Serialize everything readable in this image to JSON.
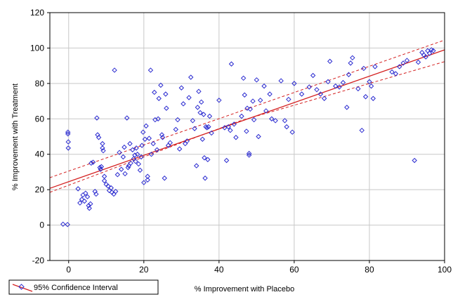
{
  "chart_data": {
    "type": "scatter",
    "title": "",
    "xlabel": "% Improvement with Placebo",
    "ylabel": "% Improvement with Treatment",
    "xlim": [
      -5,
      100
    ],
    "ylim": [
      -20,
      120
    ],
    "xticks": [
      0,
      20,
      40,
      60,
      80,
      100
    ],
    "yticks": [
      -20,
      0,
      20,
      40,
      60,
      80,
      100,
      120
    ],
    "grid": true,
    "legend": {
      "placement": "bottom-left",
      "label": "95% Confidence Interval"
    },
    "colors": {
      "points": "#2b2bd0",
      "fit": "#d42020",
      "grid": "#c8c8c8"
    },
    "fit_line": {
      "intercept": 24.5,
      "slope": 0.745
    },
    "ci_band": {
      "lower": [
        [
          -5,
          18.5
        ],
        [
          45,
          58.5
        ],
        [
          100,
          92.3
        ]
      ],
      "upper": [
        [
          -5,
          26.8
        ],
        [
          45,
          63.8
        ],
        [
          100,
          104.5
        ]
      ]
    },
    "points": [
      [
        -1.5,
        0.5
      ],
      [
        -0.3,
        0.3
      ],
      [
        -0.2,
        52.5
      ],
      [
        -0.2,
        51.5
      ],
      [
        -0.1,
        47
      ],
      [
        -0.1,
        43.5
      ],
      [
        2.5,
        20.5
      ],
      [
        3,
        12.5
      ],
      [
        3.5,
        14.5
      ],
      [
        3.8,
        17
      ],
      [
        4.2,
        13.5
      ],
      [
        4.5,
        18
      ],
      [
        5,
        16
      ],
      [
        5.3,
        11
      ],
      [
        5.5,
        9.5
      ],
      [
        5.8,
        12
      ],
      [
        6,
        35
      ],
      [
        6.5,
        35.5
      ],
      [
        7,
        19
      ],
      [
        7.3,
        17.5
      ],
      [
        7.5,
        60.5
      ],
      [
        7.7,
        51
      ],
      [
        8,
        49.5
      ],
      [
        8.3,
        32.5
      ],
      [
        8.5,
        31.5
      ],
      [
        8.7,
        33
      ],
      [
        9,
        43.5
      ],
      [
        9,
        46
      ],
      [
        9.2,
        42
      ],
      [
        9.5,
        27.5
      ],
      [
        9.5,
        25
      ],
      [
        10,
        23
      ],
      [
        10.5,
        22
      ],
      [
        10.8,
        19.5
      ],
      [
        11.3,
        21
      ],
      [
        11.5,
        18.5
      ],
      [
        12,
        17.5
      ],
      [
        12.2,
        87.5
      ],
      [
        12.5,
        19
      ],
      [
        13,
        28.5
      ],
      [
        13.5,
        41
      ],
      [
        14,
        31.5
      ],
      [
        14.5,
        38.5
      ],
      [
        14.8,
        44
      ],
      [
        15,
        29
      ],
      [
        15.5,
        60.5
      ],
      [
        15.8,
        32.5
      ],
      [
        16,
        33.5
      ],
      [
        16.3,
        46
      ],
      [
        16.5,
        35
      ],
      [
        17,
        42.5
      ],
      [
        17.3,
        37.5
      ],
      [
        17.6,
        39.5
      ],
      [
        17.8,
        36
      ],
      [
        18,
        43.5
      ],
      [
        18.3,
        40
      ],
      [
        18.6,
        34.5
      ],
      [
        19,
        31
      ],
      [
        19.3,
        38.5
      ],
      [
        19.5,
        45
      ],
      [
        19.8,
        52.5
      ],
      [
        20,
        24
      ],
      [
        20.3,
        48.5
      ],
      [
        20.6,
        56
      ],
      [
        21,
        25.5
      ],
      [
        21,
        27.5
      ],
      [
        21.4,
        49
      ],
      [
        21.8,
        87.5
      ],
      [
        22,
        40
      ],
      [
        22.5,
        46
      ],
      [
        22.8,
        75
      ],
      [
        23,
        59.5
      ],
      [
        23.5,
        42.5
      ],
      [
        23.8,
        60
      ],
      [
        24,
        71.5
      ],
      [
        24.5,
        79
      ],
      [
        24.8,
        51
      ],
      [
        25,
        49.5
      ],
      [
        25.5,
        26.5
      ],
      [
        25.8,
        74
      ],
      [
        26,
        66
      ],
      [
        26.5,
        45
      ],
      [
        27,
        46.5
      ],
      [
        28.5,
        54
      ],
      [
        29,
        59.5
      ],
      [
        29.5,
        43
      ],
      [
        30,
        77.5
      ],
      [
        30.5,
        68.5
      ],
      [
        31,
        46
      ],
      [
        31.5,
        47.5
      ],
      [
        32,
        72
      ],
      [
        32.5,
        83.5
      ],
      [
        33,
        59
      ],
      [
        33.5,
        54.5
      ],
      [
        34,
        33.5
      ],
      [
        34.3,
        66.5
      ],
      [
        34.6,
        75.5
      ],
      [
        35,
        63.5
      ],
      [
        35.3,
        69.5
      ],
      [
        35.6,
        48.5
      ],
      [
        35.9,
        62.5
      ],
      [
        36.1,
        38
      ],
      [
        36.3,
        26.5
      ],
      [
        36.5,
        55.5
      ],
      [
        36.8,
        55
      ],
      [
        37,
        37
      ],
      [
        37.2,
        55.5
      ],
      [
        37.5,
        61.5
      ],
      [
        38,
        52
      ],
      [
        40,
        70.5
      ],
      [
        41.5,
        55
      ],
      [
        42,
        36.5
      ],
      [
        42.5,
        55.5
      ],
      [
        43,
        53.5
      ],
      [
        43.3,
        91
      ],
      [
        44,
        57
      ],
      [
        44.5,
        49.5
      ],
      [
        46,
        61.5
      ],
      [
        46.5,
        83
      ],
      [
        46.8,
        73.5
      ],
      [
        47.3,
        53
      ],
      [
        47.5,
        66
      ],
      [
        48,
        40.5
      ],
      [
        48,
        39.5
      ],
      [
        48.3,
        65.5
      ],
      [
        49,
        70
      ],
      [
        49.3,
        59.5
      ],
      [
        50,
        82
      ],
      [
        50.5,
        50
      ],
      [
        51,
        70.5
      ],
      [
        52,
        78.5
      ],
      [
        52.5,
        64.5
      ],
      [
        53.5,
        74
      ],
      [
        54,
        60
      ],
      [
        55,
        59
      ],
      [
        56.5,
        81.5
      ],
      [
        57.5,
        59
      ],
      [
        58,
        55.5
      ],
      [
        58.5,
        71
      ],
      [
        59.5,
        52.5
      ],
      [
        60,
        80
      ],
      [
        62,
        74
      ],
      [
        64,
        78
      ],
      [
        65,
        84.5
      ],
      [
        66,
        76.5
      ],
      [
        67,
        74
      ],
      [
        68,
        71.5
      ],
      [
        69,
        81
      ],
      [
        69.5,
        92.5
      ],
      [
        71,
        78.5
      ],
      [
        72,
        78
      ],
      [
        73,
        80.5
      ],
      [
        74,
        66.5
      ],
      [
        74.5,
        85
      ],
      [
        75,
        91.5
      ],
      [
        75.5,
        94.5
      ],
      [
        77,
        77
      ],
      [
        78,
        53.5
      ],
      [
        78.5,
        88.5
      ],
      [
        79,
        72.5
      ],
      [
        80,
        81
      ],
      [
        80.5,
        78.5
      ],
      [
        81,
        71.5
      ],
      [
        81.5,
        89.5
      ],
      [
        86,
        86.5
      ],
      [
        87,
        85.5
      ],
      [
        88,
        89.5
      ],
      [
        89,
        91.5
      ],
      [
        90,
        93
      ],
      [
        92,
        36.5
      ],
      [
        93,
        92
      ],
      [
        94,
        97.5
      ],
      [
        94.5,
        96
      ],
      [
        95,
        95
      ],
      [
        95.5,
        98.5
      ],
      [
        96,
        97
      ],
      [
        96.5,
        99
      ],
      [
        97,
        98.5
      ]
    ]
  }
}
